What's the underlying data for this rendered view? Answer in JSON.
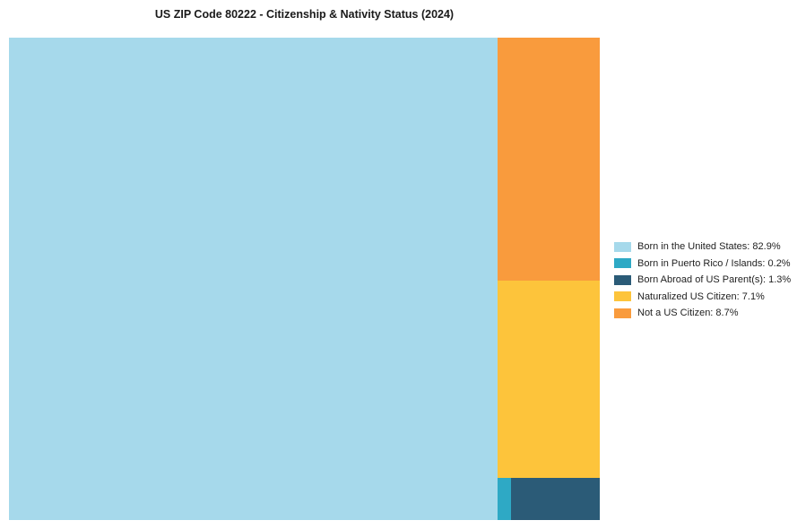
{
  "title": "US ZIP Code 80222 - Citizenship & Nativity Status (2024)",
  "chart_data": {
    "type": "treemap",
    "title": "US ZIP Code 80222 - Citizenship & Nativity Status (2024)",
    "categories": [
      "Born in the United States",
      "Born in Puerto Rico / Islands",
      "Born Abroad of US Parent(s)",
      "Naturalized US Citizen",
      "Not a US Citizen"
    ],
    "values": [
      82.9,
      0.2,
      1.3,
      7.1,
      8.7
    ],
    "unit": "%",
    "colors": [
      "#A6D9EB",
      "#2EA9C5",
      "#2B5B77",
      "#FDC43B",
      "#F99B3D"
    ],
    "layout": {
      "legend_position": "right-center",
      "left_block_full_height": true,
      "right_column_order_top_to_bottom": [
        "Not a US Citizen",
        "Naturalized US Citizen",
        "Born in Puerto Rico / Islands + Born Abroad of US Parent(s)"
      ]
    },
    "legend": [
      {
        "label": "Born in the United States: 82.9%"
      },
      {
        "label": "Born in Puerto Rico / Islands: 0.2%"
      },
      {
        "label": "Born Abroad of US Parent(s): 1.3%"
      },
      {
        "label": "Naturalized US Citizen: 7.1%"
      },
      {
        "label": "Not a US Citizen: 8.7%"
      }
    ]
  }
}
